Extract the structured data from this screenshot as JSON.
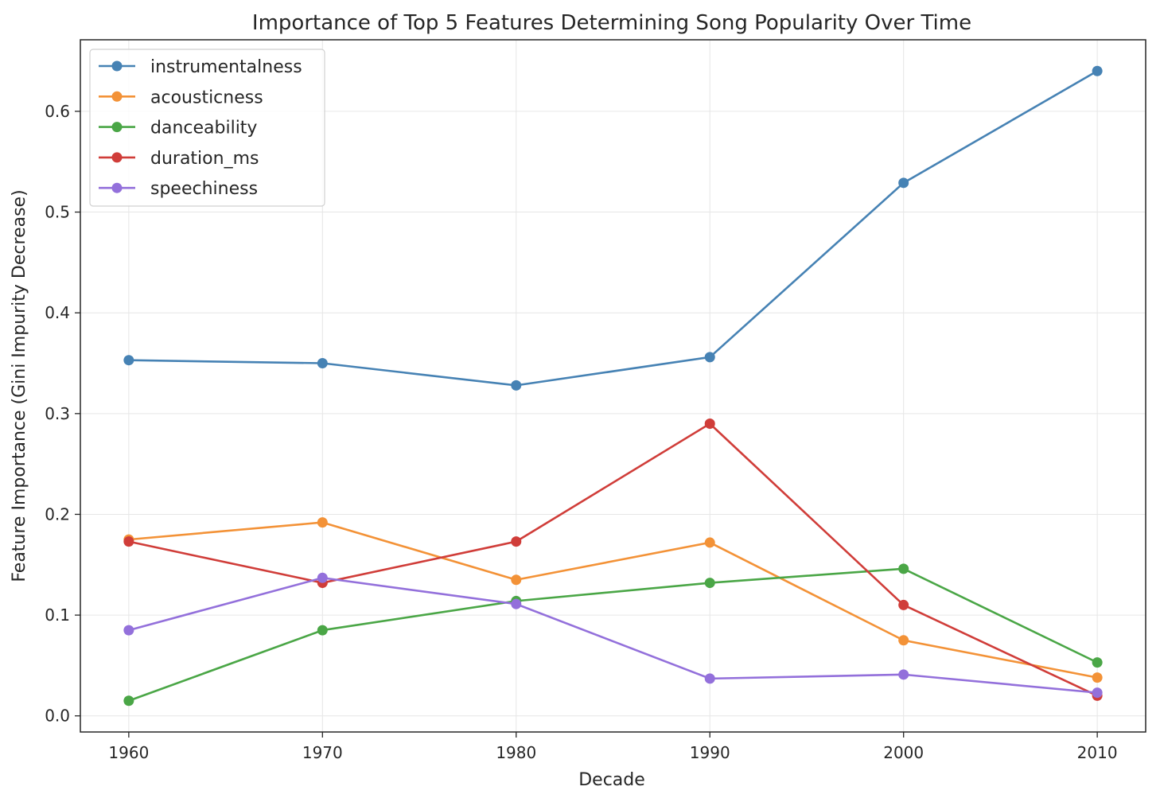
{
  "chart_data": {
    "type": "line",
    "title": "Importance of Top 5 Features Determining Song Popularity Over Time",
    "xlabel": "Decade",
    "ylabel": "Feature Importance (Gini Impurity Decrease)",
    "x": [
      1960,
      1970,
      1980,
      1990,
      2000,
      2010
    ],
    "xticks": [
      "1960",
      "1970",
      "1980",
      "1990",
      "2000",
      "2010"
    ],
    "yticks": [
      "0.0",
      "0.1",
      "0.2",
      "0.3",
      "0.4",
      "0.5",
      "0.6"
    ],
    "xlim": [
      1957.5,
      2012.5
    ],
    "ylim": [
      -0.016,
      0.671
    ],
    "grid": true,
    "legend_position": "upper-left",
    "series": [
      {
        "name": "instrumentalness",
        "color": "#4682b4",
        "values": [
          0.353,
          0.35,
          0.328,
          0.356,
          0.529,
          0.64
        ]
      },
      {
        "name": "acousticness",
        "color": "#f39237",
        "values": [
          0.175,
          0.192,
          0.135,
          0.172,
          0.075,
          0.038
        ]
      },
      {
        "name": "danceability",
        "color": "#4aa646",
        "values": [
          0.015,
          0.085,
          0.114,
          0.132,
          0.146,
          0.053
        ]
      },
      {
        "name": "duration_ms",
        "color": "#d03d39",
        "values": [
          0.173,
          0.132,
          0.173,
          0.29,
          0.11,
          0.02
        ]
      },
      {
        "name": "speechiness",
        "color": "#9370db",
        "values": [
          0.085,
          0.137,
          0.111,
          0.037,
          0.041,
          0.023
        ]
      }
    ]
  }
}
